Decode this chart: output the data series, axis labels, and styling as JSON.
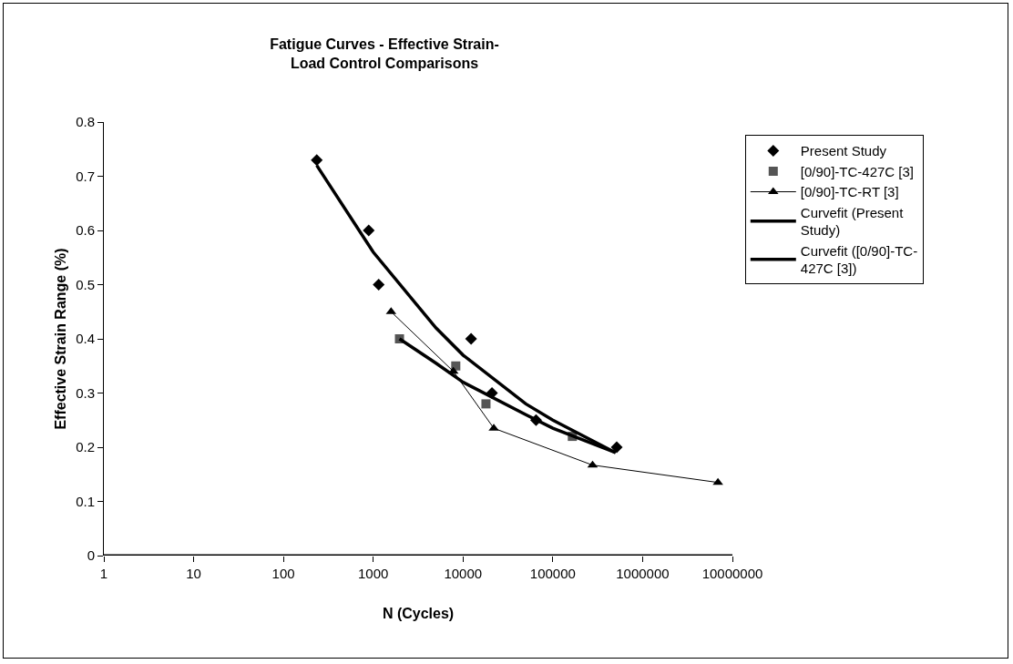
{
  "chart_data": {
    "type": "scatter",
    "title": "Fatigue Curves - Effective Strain-\nLoad Control Comparisons",
    "xlabel": "N (Cycles)",
    "ylabel": "Effective Strain Range (%)",
    "log": "x",
    "grid": false,
    "legend": "right",
    "xlim": [
      1,
      10000000
    ],
    "xticks": [
      1,
      10,
      100,
      1000,
      10000,
      100000,
      1000000,
      10000000
    ],
    "ylim": [
      0,
      0.8
    ],
    "yticks": [
      0,
      0.1,
      0.2,
      0.3,
      0.4,
      0.5,
      0.6,
      0.7,
      0.8
    ],
    "series": [
      {
        "name": "Present Study",
        "marker": "diamond",
        "color": "#000000",
        "x": [
          235,
          890,
          1150,
          12300,
          21000,
          65000,
          515000
        ],
        "values": [
          0.73,
          0.6,
          0.5,
          0.4,
          0.3,
          0.25,
          0.2
        ]
      },
      {
        "name": "[0/90]-TC-427C [3]",
        "marker": "square",
        "color": "#555555",
        "x": [
          1960,
          8300,
          18000,
          165000
        ],
        "values": [
          0.4,
          0.35,
          0.28,
          0.22
        ]
      },
      {
        "name": "[0/90]-TC-RT [3]",
        "type": "line",
        "marker": "triangle",
        "line_style": "solid",
        "color": "#000000",
        "x": [
          1580,
          7800,
          22000,
          277000,
          6900000
        ],
        "values": [
          0.45,
          0.34,
          0.235,
          0.167,
          0.135
        ]
      },
      {
        "name": "Curvefit (Present\nStudy)",
        "type": "line",
        "marker": "none",
        "line_style": "solid",
        "color": "#000000",
        "x": [
          235,
          1000,
          5000,
          10000,
          50000,
          100000,
          500000
        ],
        "values": [
          0.72,
          0.56,
          0.42,
          0.37,
          0.28,
          0.25,
          0.19
        ]
      },
      {
        "name": "Curvefit ([0/90]-TC-\n427C [3])",
        "type": "line",
        "marker": "none",
        "line_style": "solid",
        "color": "#000000",
        "x": [
          1960,
          5000,
          10000,
          50000,
          100000,
          500000
        ],
        "values": [
          0.4,
          0.355,
          0.32,
          0.26,
          0.235,
          0.19
        ]
      }
    ]
  }
}
